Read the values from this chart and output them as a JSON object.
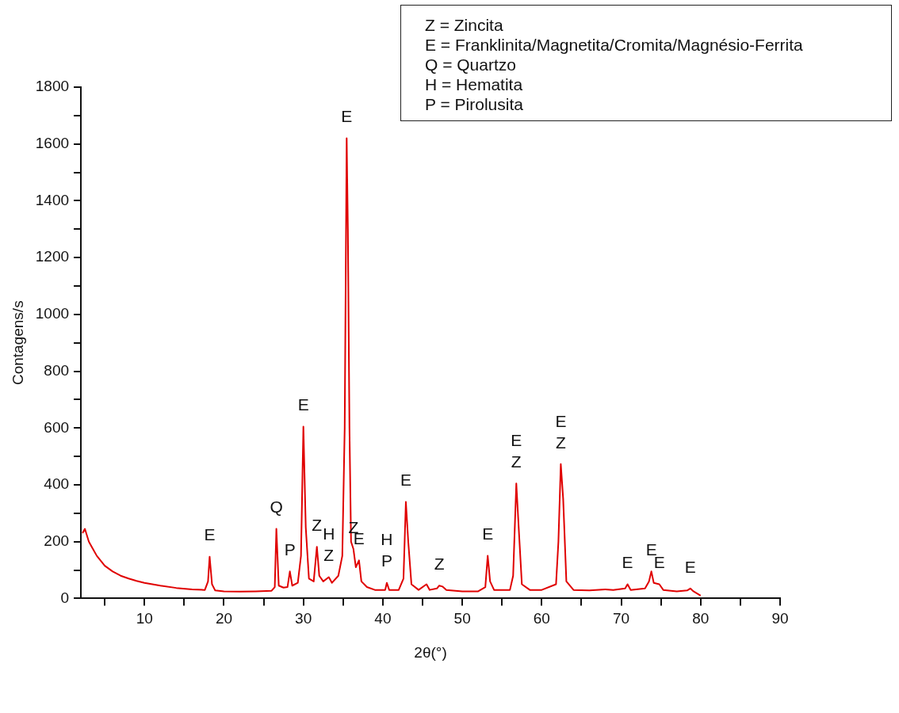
{
  "chart_data": {
    "type": "line",
    "xlabel": "2θ(°)",
    "ylabel": "Contagens/s",
    "x": [
      2.2,
      2.5,
      3,
      3.5,
      4,
      5,
      6,
      7,
      8,
      9,
      10,
      12,
      14,
      16,
      17.6,
      18.0,
      18.2,
      18.5,
      18.9,
      20,
      22,
      24,
      26,
      26.4,
      26.6,
      26.9,
      27.5,
      28.0,
      28.3,
      28.6,
      29.3,
      29.7,
      30.0,
      30.3,
      30.7,
      31.3,
      31.7,
      32.0,
      32.5,
      33.2,
      33.6,
      34.4,
      34.9,
      35.2,
      35.45,
      35.6,
      35.8,
      36.0,
      36.3,
      36.6,
      37.0,
      37.3,
      38,
      39,
      40.3,
      40.5,
      40.8,
      42,
      42.6,
      42.9,
      43.2,
      43.6,
      44.5,
      45.5,
      45.9,
      46.8,
      47.1,
      47.5,
      48,
      50,
      52,
      52.9,
      53.2,
      53.5,
      54,
      56,
      56.4,
      56.8,
      57.1,
      57.5,
      58.5,
      60,
      61.8,
      62.1,
      62.4,
      62.7,
      63.1,
      64,
      66,
      68,
      69,
      70.5,
      70.8,
      71.2,
      73,
      73.5,
      73.8,
      74.1,
      74.8,
      75.3,
      77,
      78.3,
      78.7,
      79.1,
      80.0
    ],
    "series": [
      {
        "color": "#e00000",
        "values": [
          230,
          245,
          200,
          175,
          150,
          115,
          95,
          80,
          70,
          62,
          55,
          45,
          37,
          32,
          30,
          60,
          147,
          50,
          28,
          25,
          24,
          25,
          27,
          40,
          245,
          45,
          38,
          40,
          95,
          45,
          55,
          150,
          605,
          250,
          70,
          60,
          182,
          80,
          60,
          75,
          55,
          80,
          150,
          600,
          1620,
          1300,
          600,
          200,
          174,
          110,
          134,
          60,
          40,
          30,
          30,
          55,
          30,
          30,
          70,
          340,
          200,
          50,
          30,
          50,
          30,
          35,
          45,
          42,
          30,
          25,
          25,
          40,
          150,
          60,
          30,
          30,
          80,
          405,
          250,
          50,
          30,
          30,
          50,
          200,
          473,
          350,
          60,
          30,
          28,
          32,
          30,
          35,
          50,
          30,
          35,
          60,
          95,
          55,
          50,
          30,
          25,
          28,
          35,
          25,
          10
        ]
      }
    ],
    "xlim": [
      2,
      90
    ],
    "xticks": [
      {
        "value": 5,
        "label": null
      },
      10,
      {
        "value": 15,
        "label": null
      },
      20,
      {
        "value": 25,
        "label": null
      },
      30,
      {
        "value": 35,
        "label": null
      },
      40,
      {
        "value": 45,
        "label": null
      },
      50,
      {
        "value": 55,
        "label": null
      },
      60,
      {
        "value": 65,
        "label": null
      },
      70,
      {
        "value": 75,
        "label": null
      },
      80,
      {
        "value": 85,
        "label": null
      },
      90
    ],
    "ylim": [
      0,
      1800
    ],
    "yticks": [
      0,
      {
        "value": 100,
        "label": null
      },
      200,
      {
        "value": 300,
        "label": null
      },
      400,
      {
        "value": 500,
        "label": null
      },
      600,
      {
        "value": 700,
        "label": null
      },
      800,
      {
        "value": 900,
        "label": null
      },
      1000,
      {
        "value": 1100,
        "label": null
      },
      1200,
      {
        "value": 1300,
        "label": null
      },
      1400,
      {
        "value": 1500,
        "label": null
      },
      1600,
      {
        "value": 1700,
        "label": null
      },
      1800
    ],
    "grid": false,
    "legend": false,
    "marker": "none",
    "line_style": "solid",
    "annotations": [
      "Z = Zincita",
      "E = Franklinita/Magnetita/Cromita/Magnésio-Ferrita",
      "Q = Quartzo",
      "H = Hematita",
      "P = Pirolusita",
      {
        "text": "E",
        "x": 18.2,
        "y": 147
      },
      {
        "text": "Q",
        "x": 26.6,
        "y": 245
      },
      {
        "text": "P",
        "x": 28.3,
        "y": 95
      },
      {
        "text": "E",
        "x": 30.0,
        "y": 605
      },
      {
        "text": "Z",
        "x": 31.7,
        "y": 182
      },
      {
        "text": "Z",
        "x": 33.2,
        "y": 75
      },
      {
        "text": "H",
        "x": 33.2,
        "y": 75
      },
      {
        "text": "E",
        "x": 35.45,
        "y": 1620
      },
      {
        "text": "Z",
        "x": 36.3,
        "y": 174
      },
      {
        "text": "E",
        "x": 37.0,
        "y": 134
      },
      {
        "text": "P",
        "x": 40.5,
        "y": 55
      },
      {
        "text": "H",
        "x": 40.5,
        "y": 55
      },
      {
        "text": "E",
        "x": 42.9,
        "y": 340
      },
      {
        "text": "Z",
        "x": 47.1,
        "y": 45
      },
      {
        "text": "E",
        "x": 53.2,
        "y": 150
      },
      {
        "text": "Z",
        "x": 56.8,
        "y": 405
      },
      {
        "text": "E",
        "x": 56.8,
        "y": 405
      },
      {
        "text": "Z",
        "x": 62.4,
        "y": 473
      },
      {
        "text": "E",
        "x": 62.4,
        "y": 473
      },
      {
        "text": "E",
        "x": 70.8,
        "y": 50
      },
      {
        "text": "E",
        "x": 73.8,
        "y": 95
      },
      {
        "text": "E",
        "x": 74.8,
        "y": 50
      },
      {
        "text": "E",
        "x": 78.7,
        "y": 35
      }
    ]
  }
}
